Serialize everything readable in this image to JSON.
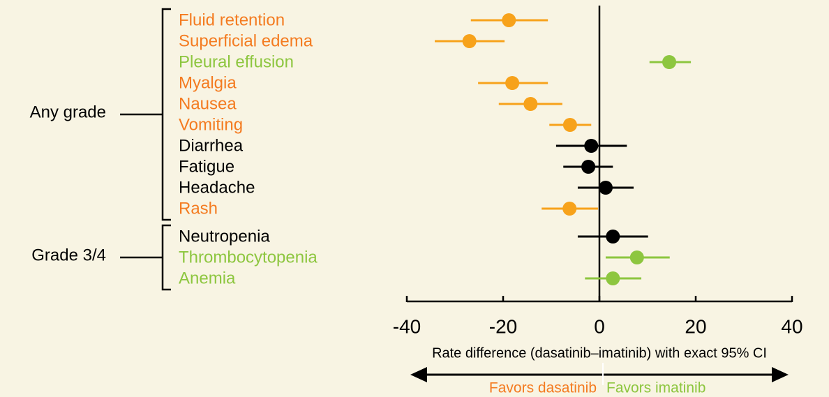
{
  "chart_data": {
    "type": "forest",
    "xlim": [
      -40,
      40
    ],
    "xticks": [
      -40,
      -20,
      0,
      20,
      40
    ],
    "xlabel": "Rate difference (dasatinib–imatinib) with exact 95% CI",
    "left_annotation": {
      "text": "Favors dasatinib",
      "color": "#f47b20"
    },
    "right_annotation": {
      "text": "Favors imatinib",
      "color": "#8dc63f"
    },
    "groups": [
      {
        "name": "Any grade",
        "items": [
          {
            "label": "Fluid retention",
            "value": -18.8,
            "ci": [
              -26.7,
              -10.7
            ],
            "color": "#f7a21b",
            "label_color": "#f47b20"
          },
          {
            "label": "Superficial edema",
            "value": -27.0,
            "ci": [
              -34.2,
              -19.7
            ],
            "color": "#f7a21b",
            "label_color": "#f47b20"
          },
          {
            "label": "Pleural effusion",
            "value": 14.5,
            "ci": [
              10.4,
              19.0
            ],
            "color": "#8dc63f",
            "label_color": "#8dc63f"
          },
          {
            "label": "Myalgia",
            "value": -18.1,
            "ci": [
              -25.2,
              -10.7
            ],
            "color": "#f7a21b",
            "label_color": "#f47b20"
          },
          {
            "label": "Nausea",
            "value": -14.3,
            "ci": [
              -20.9,
              -7.7
            ],
            "color": "#f7a21b",
            "label_color": "#f47b20"
          },
          {
            "label": "Vomiting",
            "value": -6.1,
            "ci": [
              -10.4,
              -1.7
            ],
            "color": "#f7a21b",
            "label_color": "#f47b20"
          },
          {
            "label": "Diarrhea",
            "value": -1.7,
            "ci": [
              -9.0,
              5.7
            ],
            "color": "#000000",
            "label_color": "#000000"
          },
          {
            "label": "Fatigue",
            "value": -2.3,
            "ci": [
              -7.5,
              2.8
            ],
            "color": "#000000",
            "label_color": "#000000"
          },
          {
            "label": "Headache",
            "value": 1.3,
            "ci": [
              -4.5,
              7.1
            ],
            "color": "#000000",
            "label_color": "#000000"
          },
          {
            "label": "Rash",
            "value": -6.2,
            "ci": [
              -12.0,
              -0.3
            ],
            "color": "#f7a21b",
            "label_color": "#f47b20"
          }
        ]
      },
      {
        "name": "Grade 3/4",
        "items": [
          {
            "label": "Neutropenia",
            "value": 2.8,
            "ci": [
              -4.5,
              10.1
            ],
            "color": "#000000",
            "label_color": "#000000"
          },
          {
            "label": "Thrombocytopenia",
            "value": 7.8,
            "ci": [
              1.3,
              14.6
            ],
            "color": "#8dc63f",
            "label_color": "#8dc63f"
          },
          {
            "label": "Anemia",
            "value": 2.8,
            "ci": [
              -3.0,
              8.7
            ],
            "color": "#8dc63f",
            "label_color": "#8dc63f"
          }
        ]
      }
    ]
  }
}
